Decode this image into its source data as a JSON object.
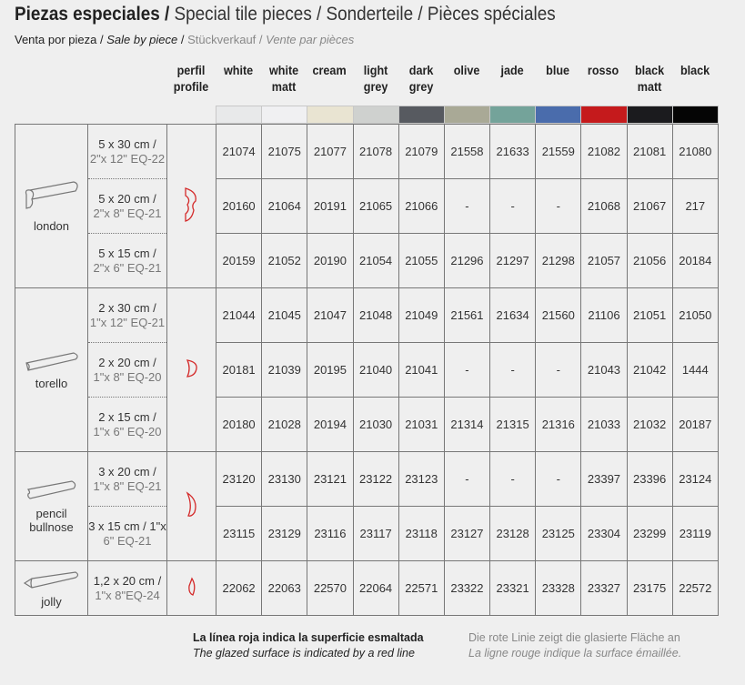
{
  "title": {
    "bold": "Piezas especiales /",
    "rest": "Special tile pieces / Sonderteile / Pièces spéciales"
  },
  "subtitle": {
    "es": "Venta por pieza /",
    "en": "Sale by piece",
    "sep": "/",
    "de": "Stückverkauf /",
    "fr": "Vente par pièces"
  },
  "profile_header": [
    "perfil",
    "profile"
  ],
  "colors": [
    {
      "label": [
        "white"
      ],
      "swatch": "#e8e9ea"
    },
    {
      "label": [
        "white",
        "matt"
      ],
      "swatch": "#f0f0f2"
    },
    {
      "label": [
        "cream"
      ],
      "swatch": "#e9e4d2"
    },
    {
      "label": [
        "light",
        "grey"
      ],
      "swatch": "#cfd1cf"
    },
    {
      "label": [
        "dark",
        "grey"
      ],
      "swatch": "#575a60"
    },
    {
      "label": [
        "olive"
      ],
      "swatch": "#a9a996"
    },
    {
      "label": [
        "jade"
      ],
      "swatch": "#74a39a"
    },
    {
      "label": [
        "blue"
      ],
      "swatch": "#4a6cac"
    },
    {
      "label": [
        "rosso"
      ],
      "swatch": "#c51a1c"
    },
    {
      "label": [
        "black",
        "matt"
      ],
      "swatch": "#1b1b1e"
    },
    {
      "label": [
        "black"
      ],
      "swatch": "#050505"
    }
  ],
  "groups": [
    {
      "name": [
        "london"
      ],
      "piece_icon": "london-piece-icon",
      "profile_icon": "london-profile-icon",
      "rows": [
        {
          "size": [
            "5 x 30 cm /",
            "2\"x 12\" EQ-22"
          ],
          "codes": [
            "21074",
            "21075",
            "21077",
            "21078",
            "21079",
            "21558",
            "21633",
            "21559",
            "21082",
            "21081",
            "21080"
          ]
        },
        {
          "size": [
            "5 x 20 cm /",
            "2\"x 8\" EQ-21"
          ],
          "codes": [
            "20160",
            "21064",
            "20191",
            "21065",
            "21066",
            "-",
            "-",
            "-",
            "21068",
            "21067",
            "217"
          ]
        },
        {
          "size": [
            "5 x 15 cm /",
            "2\"x 6\" EQ-21"
          ],
          "codes": [
            "20159",
            "21052",
            "20190",
            "21054",
            "21055",
            "21296",
            "21297",
            "21298",
            "21057",
            "21056",
            "20184"
          ]
        }
      ]
    },
    {
      "name": [
        "torello"
      ],
      "piece_icon": "torello-piece-icon",
      "profile_icon": "torello-profile-icon",
      "rows": [
        {
          "size": [
            "2 x 30 cm /",
            "1\"x 12\" EQ-21"
          ],
          "codes": [
            "21044",
            "21045",
            "21047",
            "21048",
            "21049",
            "21561",
            "21634",
            "21560",
            "21106",
            "21051",
            "21050"
          ]
        },
        {
          "size": [
            "2 x 20 cm /",
            "1\"x 8\" EQ-20"
          ],
          "codes": [
            "20181",
            "21039",
            "20195",
            "21040",
            "21041",
            "-",
            "-",
            "-",
            "21043",
            "21042",
            "1444"
          ]
        },
        {
          "size": [
            "2 x 15 cm /",
            "1\"x 6\" EQ-20"
          ],
          "codes": [
            "20180",
            "21028",
            "20194",
            "21030",
            "21031",
            "21314",
            "21315",
            "21316",
            "21033",
            "21032",
            "20187"
          ]
        }
      ]
    },
    {
      "name": [
        "pencil",
        "bullnose"
      ],
      "piece_icon": "pencil-bullnose-piece-icon",
      "profile_icon": "pencil-bullnose-profile-icon",
      "rows": [
        {
          "size": [
            "3 x 20 cm /",
            "1\"x 8\" EQ-21"
          ],
          "codes": [
            "23120",
            "23130",
            "23121",
            "23122",
            "23123",
            "-",
            "-",
            "-",
            "23397",
            "23396",
            "23124"
          ]
        },
        {
          "size": [
            "3 x 15 cm / 1\"x",
            "6\" EQ-21"
          ],
          "codes": [
            "23115",
            "23129",
            "23116",
            "23117",
            "23118",
            "23127",
            "23128",
            "23125",
            "23304",
            "23299",
            "23119"
          ]
        }
      ]
    },
    {
      "name": [
        "jolly"
      ],
      "piece_icon": "jolly-piece-icon",
      "profile_icon": "jolly-profile-icon",
      "rows": [
        {
          "size": [
            "1,2 x 20 cm /",
            "1\"x 8\"EQ-24"
          ],
          "codes": [
            "22062",
            "22063",
            "22570",
            "22064",
            "22571",
            "23322",
            "23321",
            "23328",
            "23327",
            "23175",
            "22572"
          ]
        }
      ]
    }
  ],
  "footer": {
    "es": "La línea roja indica la superficie esmaltada",
    "en": "The glazed surface is indicated by a red line",
    "de": "Die rote Linie zeigt die glasierte Fläche an",
    "fr": "La ligne rouge indique la surface émaillée."
  },
  "accent_red": "#d42a2a"
}
